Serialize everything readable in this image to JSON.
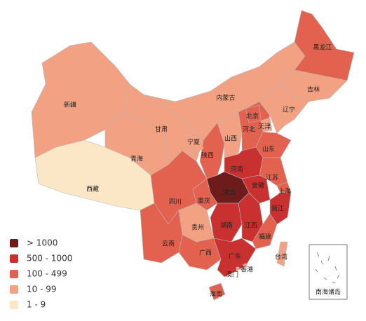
{
  "legend": [
    {
      "label": "> 1000",
      "color": "#6e1b1b"
    },
    {
      "label": "500 - 1000",
      "color": "#c8312f"
    },
    {
      "label": "100 - 499",
      "color": "#e2614f"
    },
    {
      "label": "10 - 99",
      "color": "#f2a183"
    },
    {
      "label": "1 - 9",
      "color": "#fbe6c6"
    }
  ],
  "regions": [
    {
      "name": "新疆",
      "color": "#f2a183"
    },
    {
      "name": "西藏",
      "color": "#fbe6c6"
    },
    {
      "name": "青海",
      "color": "#f2a183"
    },
    {
      "name": "甘肃",
      "color": "#f2a183"
    },
    {
      "name": "内蒙古",
      "color": "#f2a183"
    },
    {
      "name": "黑龙江",
      "color": "#e2614f"
    },
    {
      "name": "吉林",
      "color": "#f2a183"
    },
    {
      "name": "辽宁",
      "color": "#f2a183"
    },
    {
      "name": "陕西",
      "color": "#e2614f"
    },
    {
      "name": "宁夏",
      "color": "#f2a183"
    },
    {
      "name": "山西",
      "color": "#f2a183"
    },
    {
      "name": "河北",
      "color": "#e2614f"
    },
    {
      "name": "北京",
      "color": "#e2614f"
    },
    {
      "name": "天津",
      "color": "#f2a183"
    },
    {
      "name": "山东",
      "color": "#e2614f"
    },
    {
      "name": "河南",
      "color": "#c8312f"
    },
    {
      "name": "江苏",
      "color": "#e2614f"
    },
    {
      "name": "安徽",
      "color": "#c8312f"
    },
    {
      "name": "上海",
      "color": "#e2614f"
    },
    {
      "name": "浙江",
      "color": "#c8312f"
    },
    {
      "name": "湖北",
      "color": "#6e1b1b"
    },
    {
      "name": "重庆",
      "color": "#e2614f"
    },
    {
      "name": "四川",
      "color": "#e2614f"
    },
    {
      "name": "湖南",
      "color": "#c8312f"
    },
    {
      "name": "江西",
      "color": "#c8312f"
    },
    {
      "name": "福建",
      "color": "#e2614f"
    },
    {
      "name": "贵州",
      "color": "#f2a183"
    },
    {
      "name": "云南",
      "color": "#e2614f"
    },
    {
      "name": "广西",
      "color": "#e2614f"
    },
    {
      "name": "广东",
      "color": "#c8312f"
    },
    {
      "name": "海南",
      "color": "#e2614f"
    },
    {
      "name": "台湾",
      "color": "#f2a183"
    },
    {
      "name": "香港",
      "color": "#f2a183"
    },
    {
      "name": "澳门",
      "color": "#f2a183"
    }
  ],
  "inset_label": "南海诸岛"
}
